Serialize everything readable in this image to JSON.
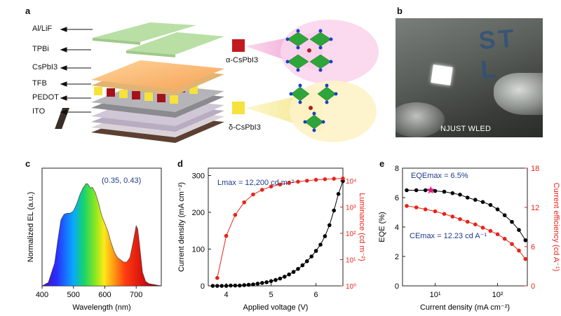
{
  "panel_a": {
    "letter": "a",
    "layers": [
      "Al/LiF",
      "TPBi",
      "CsPbI3",
      "TFB",
      "PEDOT",
      "ITO"
    ],
    "alpha_label": "α-CsPbI3",
    "delta_label": "δ-CsPbI3"
  },
  "panel_b": {
    "letter": "b",
    "caption": "NJUST WLED",
    "photo_text": "ST L"
  },
  "panel_c": {
    "letter": "c"
  },
  "panel_d": {
    "letter": "d"
  },
  "panel_e": {
    "letter": "e"
  },
  "chart_data": [
    {
      "type": "area",
      "title": "",
      "xlabel": "Wavelength (nm)",
      "ylabel": "Normalized EL (a.u.)",
      "xlim": [
        400,
        780
      ],
      "xticks": [
        400,
        500,
        600,
        700
      ],
      "annotation": "(0.35, 0.43)",
      "series": [
        {
          "x": [
            400,
            420,
            440,
            450,
            460,
            470,
            480,
            490,
            500,
            510,
            520,
            530,
            540,
            545,
            550,
            555,
            560,
            570,
            580,
            590,
            600,
            610,
            620,
            630,
            640,
            650,
            660,
            670,
            680,
            690,
            700,
            705,
            710,
            720,
            730,
            740,
            760,
            780
          ],
          "values": [
            0,
            0.03,
            0.2,
            0.4,
            0.58,
            0.63,
            0.64,
            0.64,
            0.66,
            0.72,
            0.8,
            0.86,
            0.9,
            0.9,
            0.88,
            0.86,
            0.87,
            0.82,
            0.73,
            0.62,
            0.55,
            0.48,
            0.38,
            0.3,
            0.25,
            0.23,
            0.21,
            0.21,
            0.25,
            0.38,
            0.53,
            0.5,
            0.38,
            0.12,
            0.04,
            0.02,
            0.01,
            0
          ]
        }
      ]
    },
    {
      "type": "line",
      "xlabel": "Applied voltage (V)",
      "ylabel": "Current density (mA cm⁻²)",
      "y2label": "Luminance (cd m⁻²)",
      "annotation": "Lmax = 12,200 cd m⁻²",
      "xlim": [
        3.6,
        6.6
      ],
      "ylim": [
        0,
        320
      ],
      "y2_log": true,
      "y2lim": [
        1,
        30000
      ],
      "xticks": [
        4,
        5,
        6
      ],
      "yticks": [
        0,
        100,
        200,
        300
      ],
      "y2ticks": [
        "10⁰",
        "10¹",
        "10²",
        "10³",
        "10⁴"
      ],
      "series": [
        {
          "name": "Current density",
          "axis": "left",
          "color": "#000000",
          "x": [
            3.7,
            3.8,
            3.9,
            4.0,
            4.1,
            4.2,
            4.3,
            4.4,
            4.5,
            4.6,
            4.7,
            4.8,
            4.9,
            5.0,
            5.1,
            5.2,
            5.3,
            5.4,
            5.5,
            5.6,
            5.7,
            5.8,
            5.9,
            6.0,
            6.1,
            6.2,
            6.3,
            6.4,
            6.5,
            6.6
          ],
          "values": [
            0,
            0,
            0,
            0,
            1,
            1,
            1,
            2,
            3,
            4,
            6,
            8,
            10,
            13,
            16,
            20,
            25,
            31,
            38,
            46,
            56,
            67,
            80,
            95,
            112,
            135,
            165,
            205,
            250,
            285
          ]
        },
        {
          "name": "Luminance",
          "axis": "right",
          "color": "#e8231a",
          "x": [
            3.8,
            4.0,
            4.2,
            4.4,
            4.6,
            4.8,
            5.0,
            5.2,
            5.4,
            5.6,
            5.8,
            6.0,
            6.2,
            6.4,
            6.6
          ],
          "values": [
            2,
            80,
            500,
            1500,
            3000,
            4500,
            6000,
            7200,
            8200,
            9200,
            10000,
            10800,
            11400,
            11900,
            12200
          ]
        }
      ]
    },
    {
      "type": "scatter",
      "xlabel": "Current density (mA cm⁻²)",
      "ylabel": "EQE (%)",
      "y2label": "Current efficiency (cd A⁻¹)",
      "x_log": true,
      "xlim": [
        3,
        300
      ],
      "ylim": [
        0,
        8
      ],
      "y2lim": [
        0,
        18
      ],
      "xticks": [
        "10¹",
        "10²"
      ],
      "yticks": [
        0,
        2,
        4,
        6,
        8
      ],
      "y2ticks": [
        0,
        6,
        12,
        18
      ],
      "annotations": [
        "EQEmax = 6.5%",
        "CEmax = 12.23 cd A⁻¹"
      ],
      "series": [
        {
          "name": "EQE",
          "axis": "left",
          "color": "#000000",
          "x": [
            3.5,
            5,
            7,
            8.5,
            10,
            14,
            19,
            25,
            33,
            44,
            58,
            77,
            100,
            130,
            170,
            220,
            280
          ],
          "values": [
            6.5,
            6.5,
            6.5,
            6.5,
            6.45,
            6.4,
            6.3,
            6.2,
            6.0,
            5.85,
            5.7,
            5.5,
            5.2,
            4.8,
            4.35,
            3.8,
            3.1
          ]
        },
        {
          "name": "Current efficiency",
          "axis": "right",
          "color": "#e8231a",
          "x": [
            3.5,
            5,
            7,
            10,
            14,
            19,
            25,
            33,
            44,
            58,
            77,
            100,
            130,
            170,
            220,
            280
          ],
          "values": [
            12.23,
            12.0,
            11.7,
            11.4,
            11.0,
            10.6,
            10.2,
            9.8,
            9.4,
            8.9,
            8.4,
            7.9,
            7.2,
            6.4,
            5.4,
            4.1
          ]
        }
      ],
      "marker": {
        "name": "EQE max",
        "x": 8.5,
        "value": 6.5,
        "color": "#e6197e"
      }
    }
  ]
}
